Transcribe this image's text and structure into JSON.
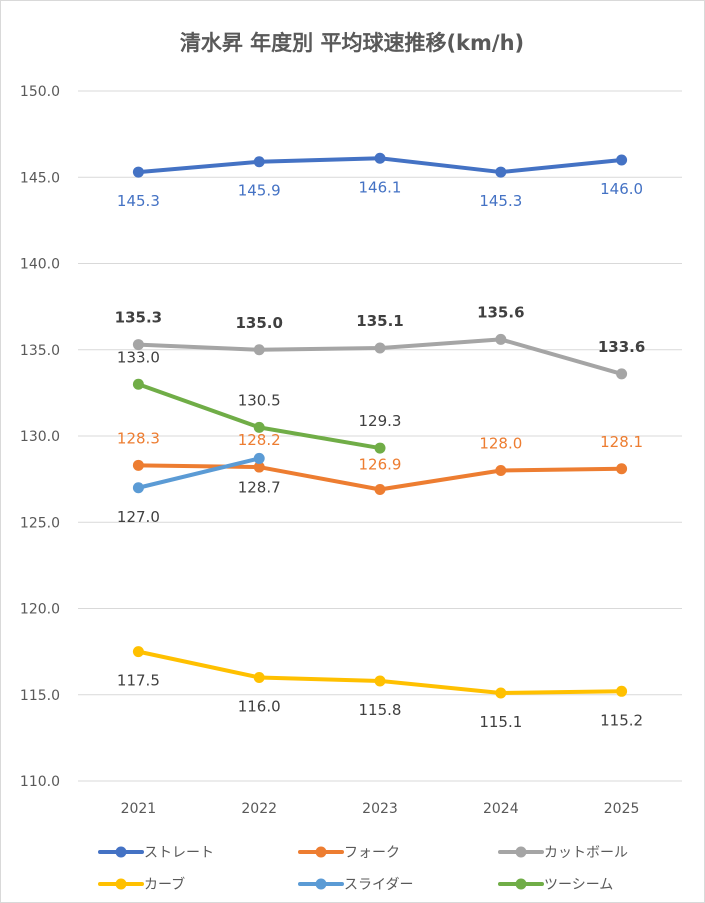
{
  "chart_data": {
    "type": "line",
    "title": "清水昇 年度別 平均球速推移(km/h)",
    "xlabel": "",
    "ylabel": "",
    "categories": [
      "2021",
      "2022",
      "2023",
      "2024",
      "2025"
    ],
    "ylim": [
      110.0,
      150.0
    ],
    "yticks": [
      "110.0",
      "115.0",
      "120.0",
      "125.0",
      "130.0",
      "135.0",
      "140.0",
      "145.0",
      "150.0"
    ],
    "grid": true,
    "legend_position": "bottom",
    "series": [
      {
        "name": "ストレート",
        "color": "#4472c4",
        "label_color": "#4472c4",
        "values": [
          145.3,
          145.9,
          146.1,
          145.3,
          146.0
        ],
        "labels": [
          "145.3",
          "145.9",
          "146.1",
          "145.3",
          "146.0"
        ],
        "label_pos": [
          "below",
          "below",
          "below",
          "below",
          "below"
        ]
      },
      {
        "name": "フォーク",
        "color": "#ed7d31",
        "label_color": "#ed7d31",
        "values": [
          128.3,
          128.2,
          126.9,
          128.0,
          128.1
        ],
        "labels": [
          "128.3",
          "128.2",
          "126.9",
          "128.0",
          "128.1"
        ],
        "label_pos": [
          "above",
          "above",
          "above2",
          "above",
          "above"
        ]
      },
      {
        "name": "カットボール",
        "color": "#a5a5a5",
        "label_color": "#404040",
        "values": [
          135.3,
          135.0,
          135.1,
          135.6,
          133.6
        ],
        "labels": [
          "135.3",
          "135.0",
          "135.1",
          "135.6",
          "133.6"
        ],
        "label_pos": [
          "above",
          "above",
          "above",
          "above",
          "above"
        ]
      },
      {
        "name": "カーブ",
        "color": "#ffc000",
        "label_color": "#404040",
        "values": [
          117.5,
          116.0,
          115.8,
          115.1,
          115.2
        ],
        "labels": [
          "117.5",
          "116.0",
          "115.8",
          "115.1",
          "115.2"
        ],
        "label_pos": [
          "below",
          "below",
          "below",
          "below",
          "below"
        ]
      },
      {
        "name": "スライダー",
        "color": "#5b9bd5",
        "label_color": "#404040",
        "values": [
          127.0,
          128.7,
          null,
          null,
          null
        ],
        "labels": [
          "127.0",
          "128.7",
          null,
          null,
          null
        ],
        "label_pos": [
          "below",
          "below",
          null,
          null,
          null
        ]
      },
      {
        "name": "ツーシーム",
        "color": "#70ad47",
        "label_color": "#404040",
        "values": [
          133.0,
          130.5,
          129.3,
          null,
          null
        ],
        "labels": [
          "133.0",
          "130.5",
          "129.3",
          null,
          null
        ],
        "label_pos": [
          "above",
          "above",
          "above",
          null,
          null
        ]
      }
    ]
  }
}
